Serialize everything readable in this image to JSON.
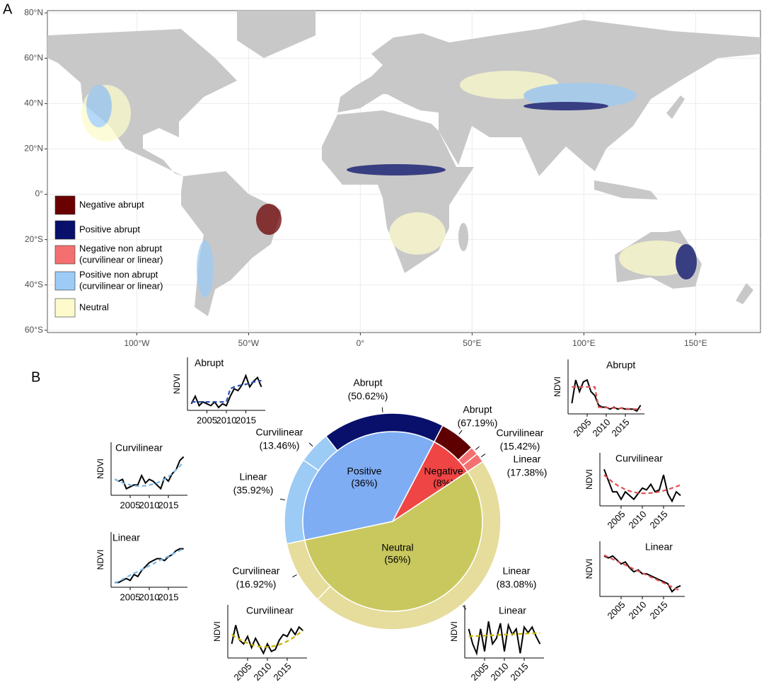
{
  "panel_labels": [
    "A",
    "B"
  ],
  "map": {
    "xlim": [
      -140,
      179
    ],
    "ylim": [
      -61,
      81
    ],
    "xticks": [
      {
        "value": -100,
        "label": "100°W"
      },
      {
        "value": -50,
        "label": "50°W"
      },
      {
        "value": 0,
        "label": "0°"
      },
      {
        "value": 50,
        "label": "50°E"
      },
      {
        "value": 100,
        "label": "100°E"
      },
      {
        "value": 150,
        "label": "150°E"
      }
    ],
    "yticks": [
      {
        "value": 80,
        "label": "80°N"
      },
      {
        "value": 60,
        "label": "60°N"
      },
      {
        "value": 40,
        "label": "40°N"
      },
      {
        "value": 20,
        "label": "20°N"
      },
      {
        "value": 0,
        "label": "0°"
      },
      {
        "value": -20,
        "label": "20°S"
      },
      {
        "value": -40,
        "label": "40°S"
      },
      {
        "value": -60,
        "label": "60°S"
      }
    ],
    "legend": [
      {
        "label": [
          "Negative abrupt"
        ],
        "color": "#6b0000"
      },
      {
        "label": [
          "Positive abrupt"
        ],
        "color": "#08106b"
      },
      {
        "label": [
          "Negative non abrupt",
          "(curvilinear or linear)"
        ],
        "color": "#f47070"
      },
      {
        "label": [
          "Positive non abrupt",
          "(curvilinear or linear)"
        ],
        "color": "#9ccbf5"
      },
      {
        "label": [
          "Neutral"
        ],
        "color": "#fdfbcc"
      }
    ]
  },
  "chart_data": [
    {
      "type": "donut",
      "start_angle": 258,
      "categories": [
        "Positive",
        "Negative",
        "Neutral"
      ],
      "values": [
        36,
        8,
        56
      ],
      "value_labels": [
        "(36%)",
        "(8%)",
        "(56%)"
      ],
      "colors": [
        "#7fadf4",
        "#f04545",
        "#c8c85f"
      ],
      "outer": [
        {
          "categories": [
            "Linear",
            "Curvilinear",
            "Abrupt"
          ],
          "values": [
            35.92,
            13.46,
            50.62
          ],
          "value_labels": [
            "(35.92%)",
            "(13.46%)",
            "(50.62%)"
          ],
          "colors": [
            "#9ccbf5",
            "#9ccbf5",
            "#08106b"
          ]
        },
        {
          "categories": [
            "Abrupt",
            "Curvilinear",
            "Linear"
          ],
          "values": [
            67.19,
            15.42,
            17.38
          ],
          "value_labels": [
            "(67.19%)",
            "(15.42%)",
            "(17.38%)"
          ],
          "colors": [
            "#5e0000",
            "#f47070",
            "#f47070"
          ]
        },
        {
          "categories": [
            "Linear",
            "Curvilinear"
          ],
          "values": [
            83.08,
            16.92
          ],
          "value_labels": [
            "(83.08%)",
            "(16.92%)"
          ],
          "colors": [
            "#e6dc9c",
            "#e6dc9c"
          ]
        }
      ]
    },
    {
      "type": "line",
      "title": "Abrupt",
      "ylabel": "NDVI",
      "x": [
        2001,
        2002,
        2003,
        2004,
        2005,
        2006,
        2007,
        2008,
        2009,
        2010,
        2011,
        2012,
        2013,
        2014,
        2015,
        2016,
        2017,
        2018,
        2019
      ],
      "xlim": [
        2000,
        2020
      ],
      "xticks": [
        2005,
        2010,
        2015
      ],
      "xtick_rotation": 0,
      "ylim": [
        0,
        1
      ],
      "series": [
        {
          "color": "#000000",
          "values": [
            0.1,
            0.3,
            0.05,
            0.15,
            0.1,
            0.05,
            0.15,
            0.0,
            0.1,
            0.05,
            0.3,
            0.5,
            0.45,
            0.6,
            0.85,
            0.55,
            0.7,
            0.8,
            0.55
          ]
        },
        {
          "color": "#2a4fb5",
          "dash": true,
          "values": [
            0.15,
            0.15,
            0.15,
            0.15,
            0.15,
            0.15,
            0.15,
            0.15,
            0.15,
            0.15,
            0.5,
            0.55,
            0.58,
            0.6,
            0.62,
            0.65,
            0.68,
            0.7,
            0.72
          ]
        }
      ]
    },
    {
      "type": "line",
      "title": "Curvilinear",
      "ylabel": "NDVI",
      "x": [
        2001,
        2002,
        2003,
        2004,
        2005,
        2006,
        2007,
        2008,
        2009,
        2010,
        2011,
        2012,
        2013,
        2014,
        2015,
        2016,
        2017,
        2018,
        2019
      ],
      "xlim": [
        2000,
        2020
      ],
      "xticks": [
        2005,
        2010,
        2015
      ],
      "xtick_rotation": 0,
      "ylim": [
        0,
        1
      ],
      "series": [
        {
          "color": "#000000",
          "values": [
            0.35,
            0.3,
            0.35,
            0.1,
            0.15,
            0.2,
            0.2,
            0.45,
            0.25,
            0.35,
            0.3,
            0.2,
            0.1,
            0.4,
            0.3,
            0.5,
            0.6,
            0.85,
            0.95
          ]
        },
        {
          "color": "#7ab8e8",
          "dash": true,
          "values": [
            0.35,
            0.3,
            0.26,
            0.23,
            0.2,
            0.18,
            0.17,
            0.17,
            0.18,
            0.2,
            0.22,
            0.25,
            0.3,
            0.35,
            0.42,
            0.5,
            0.6,
            0.7,
            0.82
          ]
        }
      ]
    },
    {
      "type": "line",
      "title": "Linear",
      "ylabel": "NDVI",
      "x": [
        2001,
        2002,
        2003,
        2004,
        2005,
        2006,
        2007,
        2008,
        2009,
        2010,
        2011,
        2012,
        2013,
        2014,
        2015,
        2016,
        2017,
        2018,
        2019
      ],
      "xlim": [
        2000,
        2020
      ],
      "xticks": [
        2005,
        2010,
        2015
      ],
      "xtick_rotation": 0,
      "ylim": [
        0,
        1
      ],
      "series": [
        {
          "color": "#000000",
          "values": [
            0.05,
            0.05,
            0.1,
            0.15,
            0.1,
            0.25,
            0.2,
            0.35,
            0.45,
            0.55,
            0.6,
            0.65,
            0.65,
            0.6,
            0.7,
            0.75,
            0.85,
            0.9,
            0.9
          ]
        },
        {
          "color": "#7ab8e8",
          "dash": true,
          "values": [
            0.03,
            0.08,
            0.13,
            0.18,
            0.23,
            0.28,
            0.32,
            0.37,
            0.42,
            0.47,
            0.52,
            0.57,
            0.62,
            0.66,
            0.71,
            0.76,
            0.81,
            0.86,
            0.9
          ]
        }
      ]
    },
    {
      "type": "line",
      "title": "Curvilinear",
      "ylabel": "NDVI",
      "x": [
        2001,
        2002,
        2003,
        2004,
        2005,
        2006,
        2007,
        2008,
        2009,
        2010,
        2011,
        2012,
        2013,
        2014,
        2015,
        2016,
        2017,
        2018,
        2019
      ],
      "xlim": [
        2000,
        2020
      ],
      "xticks": [
        2005,
        2010,
        2015
      ],
      "xtick_rotation": 45,
      "ylim": [
        0,
        1
      ],
      "series": [
        {
          "color": "#000000",
          "values": [
            0.3,
            0.8,
            0.4,
            0.3,
            0.5,
            0.2,
            0.45,
            0.25,
            0.05,
            0.3,
            0.1,
            0.15,
            0.4,
            0.55,
            0.5,
            0.7,
            0.55,
            0.75,
            0.65
          ]
        },
        {
          "color": "#c8b400",
          "dash": true,
          "values": [
            0.55,
            0.48,
            0.42,
            0.37,
            0.32,
            0.28,
            0.25,
            0.23,
            0.22,
            0.22,
            0.23,
            0.25,
            0.28,
            0.32,
            0.37,
            0.43,
            0.5,
            0.58,
            0.66
          ]
        }
      ]
    },
    {
      "type": "line",
      "title": "Linear",
      "ylabel": "NDVI",
      "x": [
        2001,
        2002,
        2003,
        2004,
        2005,
        2006,
        2007,
        2008,
        2009,
        2010,
        2011,
        2012,
        2013,
        2014,
        2015,
        2016,
        2017,
        2018,
        2019
      ],
      "xlim": [
        2000,
        2020
      ],
      "xticks": [
        2005,
        2010,
        2015
      ],
      "xtick_rotation": 45,
      "ylim": [
        0,
        1
      ],
      "series": [
        {
          "color": "#000000",
          "values": [
            0.7,
            0.3,
            0.05,
            0.7,
            0.1,
            0.9,
            0.3,
            0.45,
            0.85,
            0.1,
            0.8,
            0.55,
            0.7,
            0.05,
            0.75,
            0.6,
            0.75,
            0.5,
            0.3
          ]
        },
        {
          "color": "#c8b400",
          "dash": true,
          "values": [
            0.5,
            0.51,
            0.51,
            0.52,
            0.52,
            0.53,
            0.53,
            0.54,
            0.54,
            0.55,
            0.55,
            0.56,
            0.56,
            0.57,
            0.57,
            0.58,
            0.58,
            0.59,
            0.59
          ]
        }
      ]
    },
    {
      "type": "line",
      "title": "Abrupt",
      "ylabel": "NDVI",
      "x": [
        2001,
        2002,
        2003,
        2004,
        2005,
        2006,
        2007,
        2008,
        2009,
        2010,
        2011,
        2012,
        2013,
        2014,
        2015,
        2016,
        2017,
        2018,
        2019
      ],
      "xlim": [
        2000,
        2020
      ],
      "xticks": [
        2005,
        2010,
        2015
      ],
      "xtick_rotation": 45,
      "ylim": [
        0,
        1
      ],
      "series": [
        {
          "color": "#000000",
          "values": [
            0.2,
            0.8,
            0.5,
            0.75,
            0.8,
            0.5,
            0.4,
            0.15,
            0.1,
            0.1,
            0.05,
            0.1,
            0.05,
            0.08,
            0.05,
            0.05,
            0.05,
            0.0,
            0.15
          ]
        },
        {
          "color": "#e05050",
          "dash": true,
          "values": [
            0.62,
            0.62,
            0.62,
            0.62,
            0.62,
            0.62,
            0.62,
            0.1,
            0.09,
            0.09,
            0.08,
            0.08,
            0.07,
            0.07,
            0.06,
            0.06,
            0.05,
            0.05,
            0.04
          ]
        }
      ]
    },
    {
      "type": "line",
      "title": "Curvilinear",
      "ylabel": "NDVI",
      "x": [
        2001,
        2002,
        2003,
        2004,
        2005,
        2006,
        2007,
        2008,
        2009,
        2010,
        2011,
        2012,
        2013,
        2014,
        2015,
        2016,
        2017,
        2018,
        2019
      ],
      "xlim": [
        2000,
        2020
      ],
      "xticks": [
        2005,
        2010,
        2015
      ],
      "xtick_rotation": 45,
      "ylim": [
        0,
        1
      ],
      "series": [
        {
          "color": "#000000",
          "values": [
            0.9,
            0.6,
            0.3,
            0.3,
            0.1,
            0.3,
            0.2,
            0.1,
            0.25,
            0.4,
            0.35,
            0.5,
            0.3,
            0.35,
            0.75,
            0.25,
            0.05,
            0.3,
            0.2
          ]
        },
        {
          "color": "#e05050",
          "dash": true,
          "values": [
            0.75,
            0.65,
            0.56,
            0.48,
            0.42,
            0.36,
            0.32,
            0.29,
            0.27,
            0.26,
            0.26,
            0.27,
            0.28,
            0.3,
            0.33,
            0.36,
            0.4,
            0.44,
            0.48
          ]
        }
      ]
    },
    {
      "type": "line",
      "title": "Linear",
      "ylabel": "NDVI",
      "x": [
        2001,
        2002,
        2003,
        2004,
        2005,
        2006,
        2007,
        2008,
        2009,
        2010,
        2011,
        2012,
        2013,
        2014,
        2015,
        2016,
        2017,
        2018,
        2019
      ],
      "xlim": [
        2000,
        2020
      ],
      "xticks": [
        2005,
        2010,
        2015
      ],
      "xtick_rotation": 45,
      "ylim": [
        0,
        1
      ],
      "series": [
        {
          "color": "#000000",
          "values": [
            0.95,
            0.9,
            0.95,
            0.85,
            0.75,
            0.8,
            0.65,
            0.55,
            0.6,
            0.5,
            0.5,
            0.45,
            0.4,
            0.35,
            0.3,
            0.25,
            0.05,
            0.15,
            0.2
          ]
        },
        {
          "color": "#e05050",
          "dash": true,
          "values": [
            0.97,
            0.92,
            0.87,
            0.82,
            0.77,
            0.72,
            0.67,
            0.62,
            0.57,
            0.52,
            0.47,
            0.42,
            0.37,
            0.32,
            0.27,
            0.22,
            0.17,
            0.12,
            0.07
          ]
        }
      ]
    }
  ]
}
